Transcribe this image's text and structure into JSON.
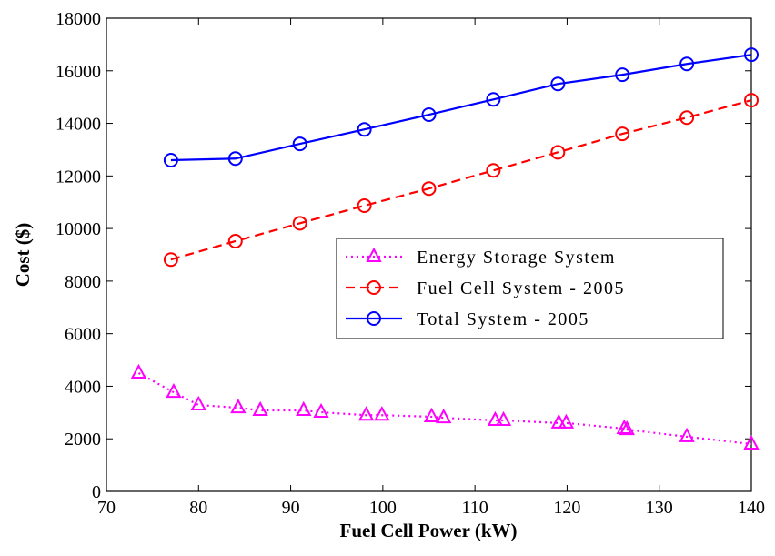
{
  "chart_data": {
    "type": "line",
    "xlabel": "Fuel Cell Power (kW)",
    "ylabel": "Cost ($)",
    "xlim": [
      70,
      140
    ],
    "xticks": [
      70,
      80,
      90,
      100,
      110,
      120,
      130,
      140
    ],
    "ylim": [
      0,
      18000
    ],
    "yticks": [
      0,
      2000,
      4000,
      6000,
      8000,
      10000,
      12000,
      14000,
      16000,
      18000
    ],
    "legend": "right",
    "series": [
      {
        "name": "Energy Storage System",
        "color": "#ff00ff",
        "line_style": "dotted",
        "marker": "triangle",
        "x": [
          73.5,
          77.3,
          80,
          84.3,
          86.7,
          91.4,
          93.3,
          98.2,
          99.9,
          105.3,
          106.6,
          112.2,
          113.1,
          119.1,
          119.9,
          126.2,
          126.5,
          133,
          140
        ],
        "values": [
          4500,
          3770,
          3290,
          3180,
          3080,
          3080,
          3010,
          2900,
          2900,
          2840,
          2800,
          2700,
          2700,
          2600,
          2600,
          2390,
          2350,
          2080,
          1800
        ]
      },
      {
        "name": "Fuel Cell System - 2005",
        "color": "#ff0000",
        "line_style": "dashed",
        "marker": "circle",
        "x": [
          77,
          84,
          91,
          98,
          105,
          112,
          119,
          126,
          133,
          140
        ],
        "values": [
          8820,
          9520,
          10200,
          10870,
          11520,
          12210,
          12900,
          13600,
          14220,
          14880
        ]
      },
      {
        "name": "Total System - 2005",
        "color": "#0000ff",
        "line_style": "solid",
        "marker": "circle",
        "x": [
          77,
          84,
          91,
          98,
          105,
          112,
          119,
          126,
          133,
          140
        ],
        "values": [
          12600,
          12660,
          13220,
          13770,
          14330,
          14910,
          15500,
          15850,
          16260,
          16610
        ]
      }
    ]
  }
}
